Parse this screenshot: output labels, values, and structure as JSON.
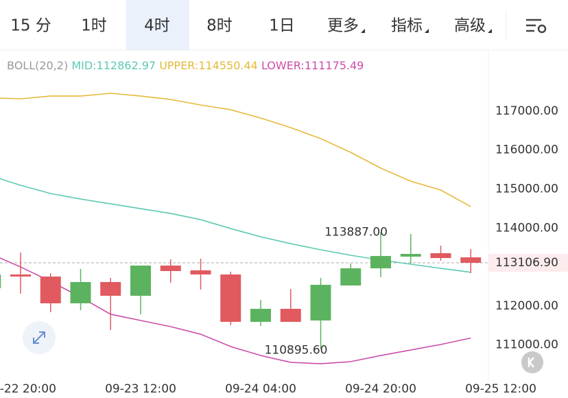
{
  "tabs": [
    "15 分",
    "1时",
    "4时",
    "8时",
    "1日",
    "更多",
    "指标",
    "高级"
  ],
  "selected_tab": 2,
  "chart_data": {
    "type": "candlestick",
    "indicator": "BOLL(20,2)",
    "indicator_values": [
      "MID:112862.97",
      "UPPER:114550.44",
      "LOWER:111175.49"
    ],
    "categories": [
      null,
      "09-22 20:00",
      null,
      null,
      null,
      "09-23 12:00",
      null,
      null,
      null,
      "09-24 04:00",
      null,
      null,
      null,
      "09-24 20:00",
      null,
      null,
      null,
      "09-25 12:00"
    ],
    "open": [
      112454,
      112807,
      112754,
      112067,
      112613,
      112261,
      113036,
      112913,
      112807,
      111591,
      111926,
      111626,
      112525,
      112965,
      113265,
      113353,
      113247,
      null
    ],
    "high": [
      112850,
      113370,
      112842,
      112948,
      112719,
      113036,
      113194,
      113212,
      112877,
      112155,
      112437,
      112719,
      113088,
      113887,
      113846,
      113547,
      113459,
      null
    ],
    "low": [
      112400,
      112314,
      111838,
      111891,
      111380,
      111785,
      112595,
      112419,
      111503,
      111485,
      111591,
      110895.6,
      112525,
      112736,
      113088,
      113159,
      112842,
      null
    ],
    "close": [
      112807,
      112754,
      112067,
      112613,
      112261,
      113036,
      112895,
      112807,
      111591,
      111926,
      111591,
      112542,
      112965,
      113282,
      113335,
      113229,
      113106.9,
      null
    ],
    "up_color": "#5cb35f",
    "down_color": "#e05a5f",
    "series": [
      {
        "name": "UPPER",
        "color": "#e6b93a",
        "values": [
          117340,
          117316,
          117387,
          117387,
          117457,
          117387,
          117299,
          117158,
          117035,
          116823,
          116577,
          116294,
          115942,
          115537,
          115202,
          114973,
          114550.44,
          null
        ]
      },
      {
        "name": "MID",
        "color": "#5cc9b3",
        "values": [
          115343,
          115097,
          114885,
          114744,
          114620,
          114497,
          114374,
          114215,
          113986,
          113775,
          113599,
          113441,
          113300,
          113177,
          113071,
          112965,
          112862.97,
          null
        ]
      },
      {
        "name": "LOWER",
        "color": "#cc4da8",
        "values": [
          113335,
          113000,
          112631,
          112226,
          111786,
          111627,
          111468,
          111274,
          110957,
          110728,
          110552,
          110517,
          110570,
          110728,
          110869,
          111010,
          111175.49,
          null
        ]
      }
    ],
    "ylim": [
      110165,
      117915
    ],
    "yticks": [
      {
        "value": 117000,
        "label": "117000.00"
      },
      {
        "value": 116000,
        "label": "116000.00"
      },
      {
        "value": 115000,
        "label": "115000.00"
      },
      {
        "value": 114000,
        "label": "114000.00"
      },
      {
        "value": 112000,
        "label": "112000.00"
      },
      {
        "value": 111000,
        "label": "111000.00"
      }
    ],
    "last_price": {
      "value": 113106.9,
      "label": "113106.90"
    },
    "annotations": [
      {
        "value": 113887,
        "label": "113887.00",
        "index": 13
      },
      {
        "value": 110895.6,
        "label": "110895.60",
        "index": 11
      }
    ]
  }
}
